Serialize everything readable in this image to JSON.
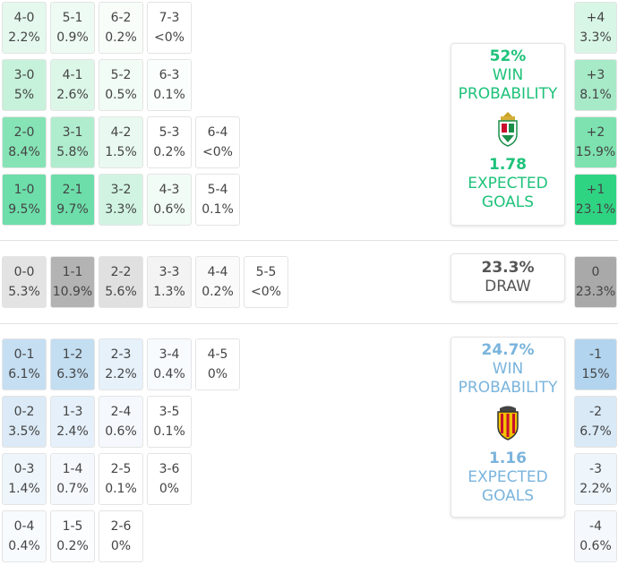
{
  "home": {
    "color": "#1ec27a",
    "rows": [
      [
        {
          "score": "4-0",
          "prob": "2.2%",
          "color": "#e4f8ee"
        },
        {
          "score": "5-1",
          "prob": "0.9%",
          "color": "#eefbf4"
        },
        {
          "score": "6-2",
          "prob": "0.2%",
          "color": "#f8fdfa"
        },
        {
          "score": "7-3",
          "prob": "<0%",
          "color": "#ffffff"
        }
      ],
      [
        {
          "score": "3-0",
          "prob": "5%",
          "color": "#c6f1da"
        },
        {
          "score": "4-1",
          "prob": "2.6%",
          "color": "#dcf6e8"
        },
        {
          "score": "5-2",
          "prob": "0.5%",
          "color": "#f2fcf6"
        },
        {
          "score": "6-3",
          "prob": "0.1%",
          "color": "#fafefc"
        }
      ],
      [
        {
          "score": "2-0",
          "prob": "8.4%",
          "color": "#86e3b5"
        },
        {
          "score": "3-1",
          "prob": "5.8%",
          "color": "#b0ecce"
        },
        {
          "score": "4-2",
          "prob": "1.5%",
          "color": "#e9f9f1"
        },
        {
          "score": "5-3",
          "prob": "0.2%",
          "color": "#ffffff"
        },
        {
          "score": "6-4",
          "prob": "<0%",
          "color": "#ffffff"
        }
      ],
      [
        {
          "score": "1-0",
          "prob": "9.5%",
          "color": "#6ddeaa"
        },
        {
          "score": "2-1",
          "prob": "9.7%",
          "color": "#6ddeaa"
        },
        {
          "score": "3-2",
          "prob": "3.3%",
          "color": "#d1f4e2"
        },
        {
          "score": "4-3",
          "prob": "0.6%",
          "color": "#f2fcf6"
        },
        {
          "score": "5-4",
          "prob": "0.1%",
          "color": "#ffffff"
        }
      ]
    ],
    "margins": [
      {
        "label": "+4",
        "prob": "3.3%",
        "color": "#d8f6e6"
      },
      {
        "label": "+3",
        "prob": "8.1%",
        "color": "#a7eac8"
      },
      {
        "label": "+2",
        "prob": "15.9%",
        "color": "#7de2af"
      },
      {
        "label": "+1",
        "prob": "23.1%",
        "color": "#2fd483"
      }
    ],
    "summary": {
      "probability": "52%",
      "probability_label": "WIN PROBABILITY",
      "expected_goals": "1.78",
      "expected_goals_label": "EXPECTED GOALS"
    }
  },
  "draw": {
    "color": "#555555",
    "rows": [
      [
        {
          "score": "0-0",
          "prob": "5.3%",
          "color": "#e3e3e3"
        },
        {
          "score": "1-1",
          "prob": "10.9%",
          "color": "#b3b3b3"
        },
        {
          "score": "2-2",
          "prob": "5.6%",
          "color": "#e0e0e0"
        },
        {
          "score": "3-3",
          "prob": "1.3%",
          "color": "#f3f3f3"
        },
        {
          "score": "4-4",
          "prob": "0.2%",
          "color": "#fafafa"
        },
        {
          "score": "5-5",
          "prob": "<0%",
          "color": "#ffffff"
        }
      ]
    ],
    "margins": [
      {
        "label": "0",
        "prob": "23.3%",
        "color": "#a9a9a9"
      }
    ],
    "summary": {
      "probability": "23.3%",
      "probability_label": "DRAW"
    }
  },
  "away": {
    "color": "#7ab4dc",
    "rows": [
      [
        {
          "score": "0-1",
          "prob": "6.1%",
          "color": "#c5def2"
        },
        {
          "score": "1-2",
          "prob": "6.3%",
          "color": "#c3ddf1"
        },
        {
          "score": "2-3",
          "prob": "2.2%",
          "color": "#e6f1fa"
        },
        {
          "score": "3-4",
          "prob": "0.4%",
          "color": "#f8fbfe"
        },
        {
          "score": "4-5",
          "prob": "0%",
          "color": "#ffffff"
        }
      ],
      [
        {
          "score": "0-2",
          "prob": "3.5%",
          "color": "#dbeaf6"
        },
        {
          "score": "1-3",
          "prob": "2.4%",
          "color": "#e5f0fa"
        },
        {
          "score": "2-4",
          "prob": "0.6%",
          "color": "#f5f9fd"
        },
        {
          "score": "3-5",
          "prob": "0.1%",
          "color": "#ffffff"
        }
      ],
      [
        {
          "score": "0-3",
          "prob": "1.4%",
          "color": "#eef5fb"
        },
        {
          "score": "1-4",
          "prob": "0.7%",
          "color": "#f5f9fd"
        },
        {
          "score": "2-5",
          "prob": "0.1%",
          "color": "#ffffff"
        },
        {
          "score": "3-6",
          "prob": "0%",
          "color": "#ffffff"
        }
      ],
      [
        {
          "score": "0-4",
          "prob": "0.4%",
          "color": "#f8fbfe"
        },
        {
          "score": "1-5",
          "prob": "0.2%",
          "color": "#fcfdff"
        },
        {
          "score": "2-6",
          "prob": "0%",
          "color": "#ffffff"
        }
      ]
    ],
    "margins": [
      {
        "label": "-1",
        "prob": "15%",
        "color": "#b2d4ee"
      },
      {
        "label": "-2",
        "prob": "6.7%",
        "color": "#d9e9f6"
      },
      {
        "label": "-3",
        "prob": "2.2%",
        "color": "#eef5fb"
      },
      {
        "label": "-4",
        "prob": "0.6%",
        "color": "#f5f9fd"
      }
    ],
    "summary": {
      "probability": "24.7%",
      "probability_label": "WIN PROBABILITY",
      "expected_goals": "1.16",
      "expected_goals_label": "EXPECTED GOALS"
    }
  }
}
